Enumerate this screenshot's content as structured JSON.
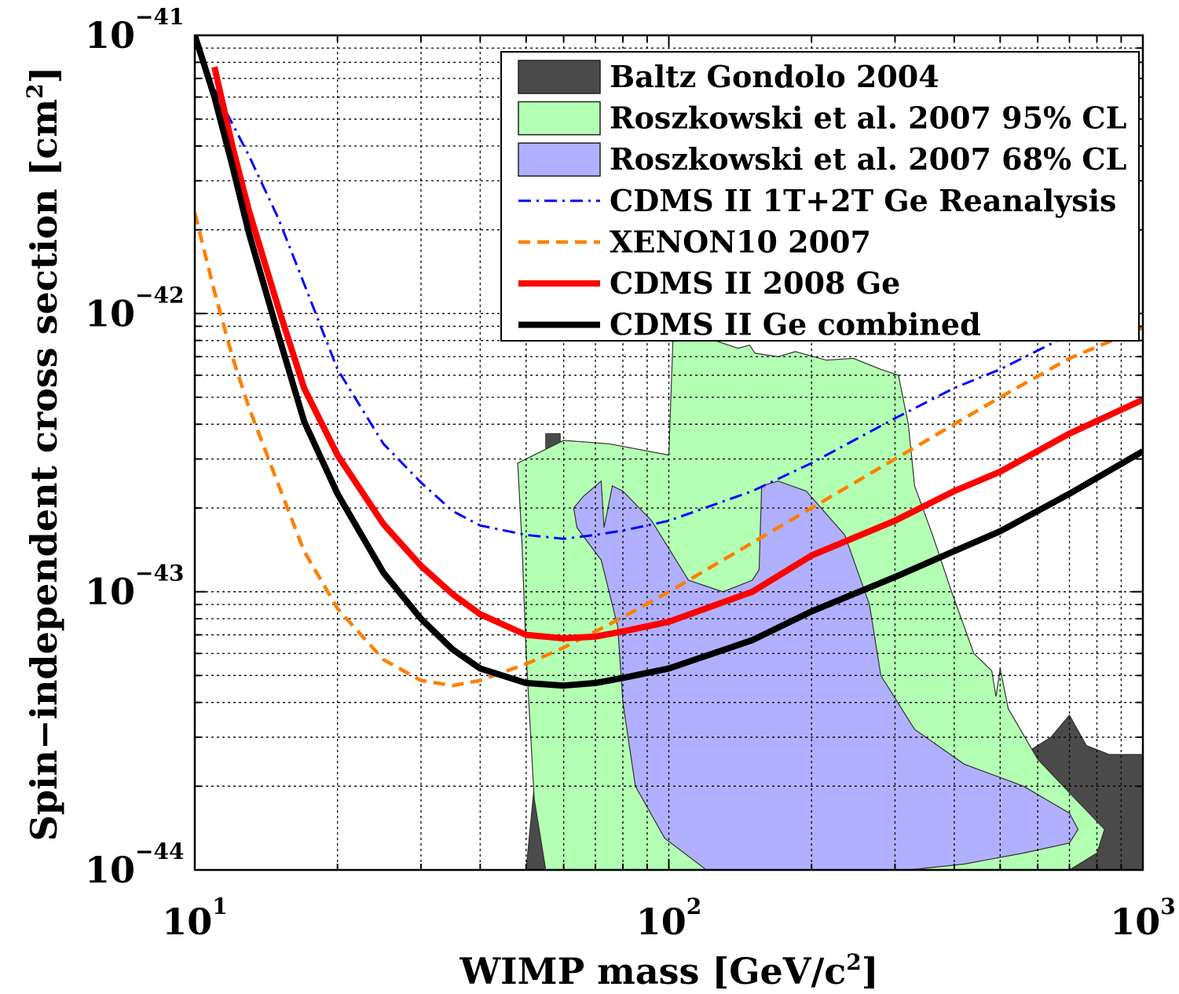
{
  "chart_data": {
    "type": "line",
    "xlabel": "WIMP mass [GeV/c",
    "xlabel_sup": "2",
    "xlabel_end": "]",
    "ylabel": "Spin−independent cross section [cm",
    "ylabel_sup": "2",
    "ylabel_end": "]",
    "x_scale": "log",
    "y_scale": "log",
    "xlim": [
      10,
      1000
    ],
    "ylim": [
      1e-44,
      1e-41
    ],
    "grid": true,
    "legend_position": "top-right",
    "x_ticks": [
      {
        "value": 10,
        "base": "10",
        "exp": "1"
      },
      {
        "value": 100,
        "base": "10",
        "exp": "2"
      },
      {
        "value": 1000,
        "base": "10",
        "exp": "3"
      }
    ],
    "y_ticks": [
      {
        "value": 1e-41,
        "base": "10",
        "exp": "−41"
      },
      {
        "value": 1e-42,
        "base": "10",
        "exp": "−42"
      },
      {
        "value": 1e-43,
        "base": "10",
        "exp": "−43"
      },
      {
        "value": 1e-44,
        "base": "10",
        "exp": "−44"
      }
    ],
    "regions": [
      {
        "name": "Baltz Gondolo 2004",
        "color": "#4a4a4a",
        "points": [
          [
            50,
            1e-44
          ],
          [
            52,
            2e-44
          ],
          [
            55,
            2.8e-44
          ],
          [
            55,
            3.7e-43
          ],
          [
            59,
            3.7e-43
          ],
          [
            59,
            1.6e-43
          ],
          [
            62,
            1.1e-43
          ],
          [
            66,
            1.5e-43
          ],
          [
            80,
            6e-44
          ],
          [
            120,
            3e-44
          ],
          [
            200,
            2.5e-44
          ],
          [
            380,
            3.2e-44
          ],
          [
            480,
            3.7e-44
          ],
          [
            510,
            3.3e-44
          ],
          [
            540,
            2.5e-44
          ],
          [
            640,
            3e-44
          ],
          [
            700,
            3.6e-44
          ],
          [
            760,
            2.8e-44
          ],
          [
            850,
            2.6e-44
          ],
          [
            1000,
            2.6e-44
          ],
          [
            1000,
            1e-44
          ]
        ]
      },
      {
        "name": "Roszkowski et al. 2007 95% CL",
        "color": "#b3ffb3",
        "points": [
          [
            48,
            2.9e-43
          ],
          [
            60,
            3.5e-43
          ],
          [
            75,
            3.4e-43
          ],
          [
            100,
            3.1e-43
          ],
          [
            102,
            8e-43
          ],
          [
            125,
            8e-43
          ],
          [
            140,
            7.5e-43
          ],
          [
            148,
            7.7e-43
          ],
          [
            152,
            7.2e-43
          ],
          [
            170,
            7e-43
          ],
          [
            185,
            7.3e-43
          ],
          [
            215,
            6.8e-43
          ],
          [
            245,
            6.9e-43
          ],
          [
            280,
            6.3e-43
          ],
          [
            305,
            6e-43
          ],
          [
            320,
            4e-43
          ],
          [
            330,
            2.4e-43
          ],
          [
            360,
            1.6e-43
          ],
          [
            395,
            1e-43
          ],
          [
            440,
            6e-44
          ],
          [
            480,
            5.2e-44
          ],
          [
            490,
            4.2e-44
          ],
          [
            500,
            5.3e-44
          ],
          [
            520,
            3.8e-44
          ],
          [
            600,
            2.5e-44
          ],
          [
            720,
            1.8e-44
          ],
          [
            830,
            1.4e-44
          ],
          [
            800,
            1.15e-44
          ],
          [
            700,
            1e-44
          ],
          [
            55,
            1e-44
          ],
          [
            52,
            1.8e-44
          ],
          [
            50,
            6e-44
          ],
          [
            49,
            1.5e-43
          ],
          [
            48,
            2.9e-43
          ]
        ]
      },
      {
        "name": "Roszkowski et al. 2007 68% CL",
        "color": "#b0b0ff",
        "points": [
          [
            63,
            2e-43
          ],
          [
            66,
            2.2e-43
          ],
          [
            72,
            2.5e-43
          ],
          [
            73,
            1.7e-43
          ],
          [
            76,
            2.4e-43
          ],
          [
            80,
            2.3e-43
          ],
          [
            92,
            1.8e-43
          ],
          [
            110,
            1.1e-43
          ],
          [
            130,
            1e-43
          ],
          [
            140,
            1.05e-43
          ],
          [
            150,
            1.1e-43
          ],
          [
            155,
            1.2e-43
          ],
          [
            157,
            2.4e-43
          ],
          [
            170,
            2.5e-43
          ],
          [
            195,
            2.3e-43
          ],
          [
            235,
            1.6e-43
          ],
          [
            265,
            9e-44
          ],
          [
            280,
            5e-44
          ],
          [
            330,
            3.2e-44
          ],
          [
            420,
            2.4e-44
          ],
          [
            560,
            2e-44
          ],
          [
            700,
            1.6e-44
          ],
          [
            730,
            1.4e-44
          ],
          [
            700,
            1.25e-44
          ],
          [
            560,
            1.15e-44
          ],
          [
            420,
            1.05e-44
          ],
          [
            320,
            1e-44
          ],
          [
            120,
            1e-44
          ],
          [
            98,
            1.3e-44
          ],
          [
            85,
            2e-44
          ],
          [
            80,
            4e-44
          ],
          [
            78,
            7.5e-44
          ],
          [
            72,
            1.3e-43
          ],
          [
            64,
            1.7e-43
          ],
          [
            63,
            2e-43
          ]
        ]
      }
    ],
    "series": [
      {
        "name": "CDMS II 1T+2T Ge Reanalysis",
        "color": "#0000ff",
        "dash": "dashdot",
        "x": [
          10,
          11,
          13,
          15,
          17,
          20,
          25,
          30,
          35,
          40,
          50,
          60,
          70,
          80,
          90,
          100,
          150,
          200,
          300,
          400,
          500,
          700,
          1000
        ],
        "y": [
          9.5e-42,
          6.4e-42,
          3.7e-42,
          2.2e-42,
          1.28e-42,
          6.3e-43,
          3.4e-43,
          2.47e-43,
          1.95e-43,
          1.73e-43,
          1.6e-43,
          1.55e-43,
          1.6e-43,
          1.66e-43,
          1.73e-43,
          1.8e-43,
          2.3e-43,
          2.9e-43,
          4.2e-43,
          5.4e-43,
          6.3e-43,
          8.4e-43,
          1.1e-42
        ]
      },
      {
        "name": "XENON10 2007",
        "color": "#ff7f00",
        "dash": "dashed",
        "x": [
          10,
          11,
          12,
          13,
          15,
          17,
          20,
          25,
          30,
          35,
          40,
          50,
          60,
          70,
          80,
          100,
          150,
          200,
          300,
          400,
          500,
          700,
          1000
        ],
        "y": [
          2.3e-42,
          1.2e-42,
          7e-43,
          4.6e-43,
          2.43e-43,
          1.4e-43,
          8.7e-44,
          5.7e-44,
          4.8e-44,
          4.6e-44,
          4.8e-44,
          5.5e-44,
          6.3e-44,
          7.2e-44,
          8.1e-44,
          1e-43,
          1.5e-43,
          2e-43,
          3e-43,
          4e-43,
          5e-43,
          6.9e-43,
          8.9e-43
        ]
      },
      {
        "name": "CDMS II 2008 Ge",
        "color": "#ff0000",
        "dash": "solid",
        "x": [
          11,
          12,
          13,
          15,
          17,
          20,
          25,
          30,
          35,
          40,
          50,
          60,
          70,
          80,
          100,
          150,
          200,
          300,
          400,
          500,
          700,
          1000
        ],
        "y": [
          7.7e-42,
          4e-42,
          2.35e-42,
          1.05e-42,
          5.4e-43,
          3.1e-43,
          1.75e-43,
          1.24e-43,
          9.8e-44,
          8.3e-44,
          7e-44,
          6.8e-44,
          6.9e-44,
          7.2e-44,
          7.8e-44,
          1e-43,
          1.35e-43,
          1.8e-43,
          2.3e-43,
          2.7e-43,
          3.7e-43,
          4.9e-43
        ]
      },
      {
        "name": "CDMS II Ge combined",
        "color": "#000000",
        "dash": "solid",
        "x": [
          10,
          11,
          12,
          13,
          15,
          17,
          20,
          25,
          30,
          35,
          40,
          50,
          60,
          70,
          80,
          100,
          150,
          200,
          300,
          400,
          500,
          700,
          1000
        ],
        "y": [
          1e-41,
          6e-42,
          3.4e-42,
          1.95e-42,
          8.4e-43,
          4.1e-43,
          2.25e-43,
          1.17e-43,
          8e-44,
          6.2e-44,
          5.3e-44,
          4.7e-44,
          4.6e-44,
          4.7e-44,
          4.9e-44,
          5.3e-44,
          6.7e-44,
          8.5e-44,
          1.13e-43,
          1.4e-43,
          1.65e-43,
          2.25e-43,
          3.2e-43
        ]
      }
    ]
  }
}
